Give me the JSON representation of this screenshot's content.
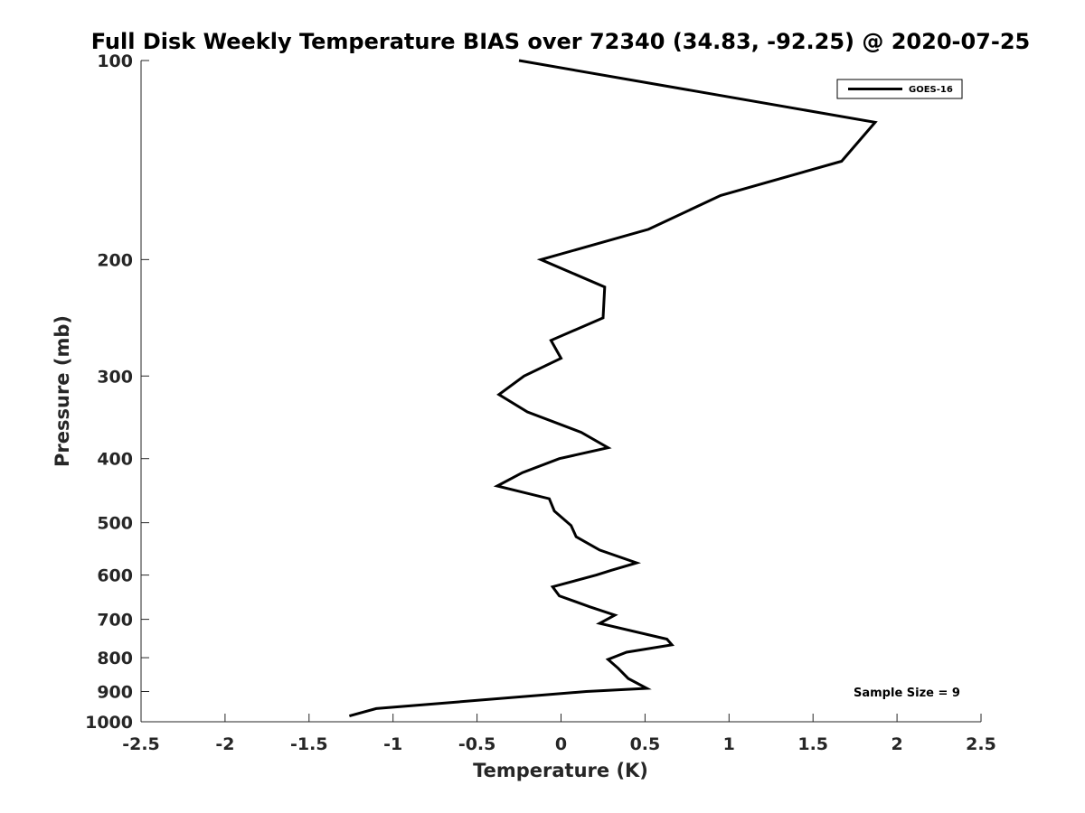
{
  "chart_data": {
    "type": "line",
    "title": "Full Disk Weekly Temperature BIAS over 72340 (34.83, -92.25) @ 2020-07-25",
    "xlabel": "Temperature (K)",
    "ylabel": "Pressure (mb)",
    "xlim": [
      -2.5,
      2.5
    ],
    "ylim": [
      100,
      1000
    ],
    "y_scale": "log",
    "y_reversed": true,
    "grid": false,
    "legend_position": "top-right",
    "x_ticks": [
      -2.5,
      -2,
      -1.5,
      -1,
      -0.5,
      0,
      0.5,
      1,
      1.5,
      2,
      2.5
    ],
    "x_tick_labels": [
      "-2.5",
      "-2",
      "-1.5",
      "-1",
      "-0.5",
      "0",
      "0.5",
      "1",
      "1.5",
      "2",
      "2.5"
    ],
    "y_ticks": [
      100,
      200,
      300,
      400,
      500,
      600,
      700,
      800,
      900,
      1000
    ],
    "y_tick_labels": [
      "100",
      "200",
      "300",
      "400",
      "500",
      "600",
      "700",
      "800",
      "900",
      "1000"
    ],
    "series": [
      {
        "name": "GOES-16",
        "color": "#000000",
        "points": [
          {
            "x": -0.25,
            "y": 100
          },
          {
            "x": 1.87,
            "y": 124
          },
          {
            "x": 1.67,
            "y": 142
          },
          {
            "x": 0.95,
            "y": 160
          },
          {
            "x": 0.52,
            "y": 180
          },
          {
            "x": -0.12,
            "y": 200
          },
          {
            "x": 0.26,
            "y": 220
          },
          {
            "x": 0.25,
            "y": 245
          },
          {
            "x": -0.06,
            "y": 265
          },
          {
            "x": 0.0,
            "y": 282
          },
          {
            "x": -0.22,
            "y": 300
          },
          {
            "x": -0.37,
            "y": 320
          },
          {
            "x": -0.2,
            "y": 340
          },
          {
            "x": 0.12,
            "y": 365
          },
          {
            "x": 0.28,
            "y": 385
          },
          {
            "x": -0.01,
            "y": 400
          },
          {
            "x": -0.23,
            "y": 420
          },
          {
            "x": -0.38,
            "y": 440
          },
          {
            "x": -0.07,
            "y": 460
          },
          {
            "x": -0.04,
            "y": 480
          },
          {
            "x": 0.06,
            "y": 505
          },
          {
            "x": 0.09,
            "y": 525
          },
          {
            "x": 0.23,
            "y": 550
          },
          {
            "x": 0.45,
            "y": 575
          },
          {
            "x": 0.3,
            "y": 590
          },
          {
            "x": 0.21,
            "y": 600
          },
          {
            "x": -0.05,
            "y": 625
          },
          {
            "x": -0.01,
            "y": 645
          },
          {
            "x": 0.17,
            "y": 670
          },
          {
            "x": 0.32,
            "y": 690
          },
          {
            "x": 0.23,
            "y": 710
          },
          {
            "x": 0.63,
            "y": 750
          },
          {
            "x": 0.66,
            "y": 765
          },
          {
            "x": 0.39,
            "y": 785
          },
          {
            "x": 0.28,
            "y": 805
          },
          {
            "x": 0.34,
            "y": 830
          },
          {
            "x": 0.4,
            "y": 860
          },
          {
            "x": 0.51,
            "y": 890
          },
          {
            "x": 0.15,
            "y": 900
          },
          {
            "x": -1.1,
            "y": 955
          },
          {
            "x": -1.26,
            "y": 980
          }
        ]
      }
    ],
    "annotations": [
      {
        "text": "Sample Size = 9"
      }
    ]
  }
}
